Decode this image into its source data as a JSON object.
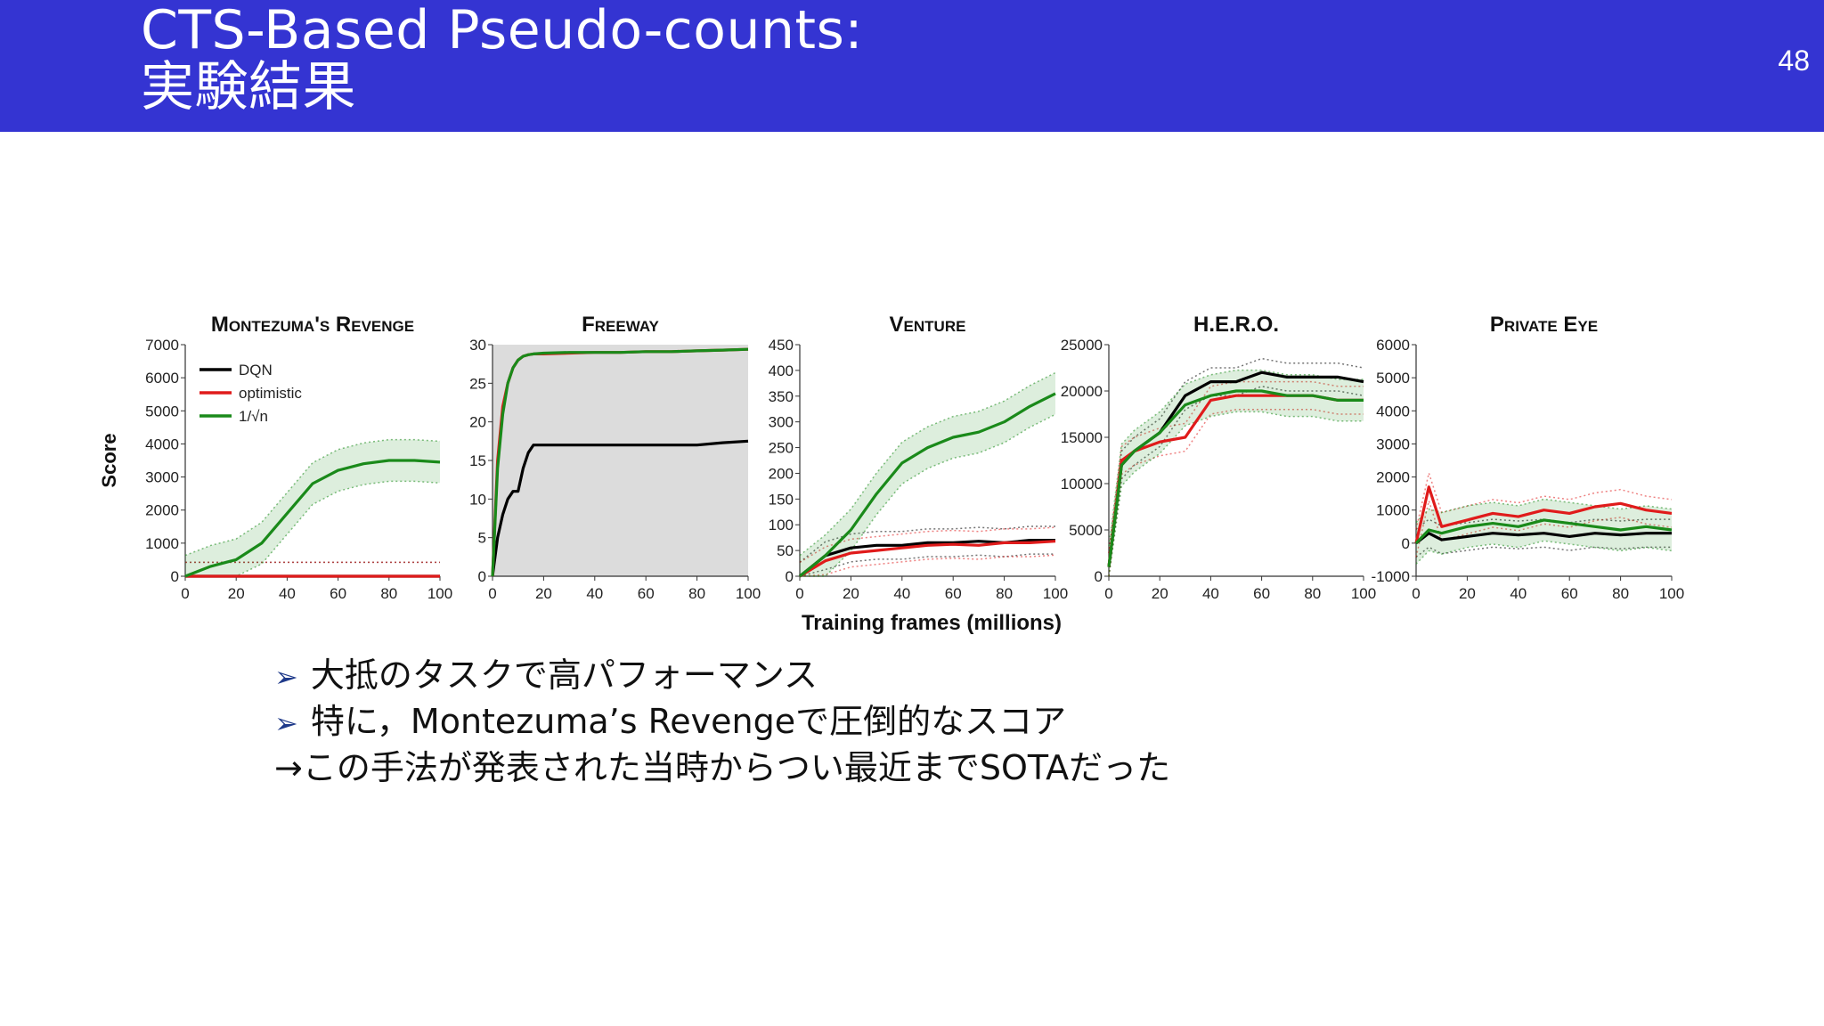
{
  "slide": {
    "title_line1": "CTS-Based Pseudo-counts:",
    "title_line2": "実験結果",
    "page_number": "48",
    "header_color": "#3434d2"
  },
  "bullets": [
    {
      "marker": "➢",
      "text": "大抵のタスクで高パフォーマンス"
    },
    {
      "marker": "➢",
      "text": "特に，Montezuma’s Revengeで圧倒的なスコア"
    },
    {
      "marker": "",
      "text": "→この手法が発表された当時からつい最近までSOTAだった"
    }
  ],
  "figure": {
    "ylabel": "Score",
    "xlabel": "Training frames (millions)",
    "legend": [
      {
        "label": "DQN",
        "color": "#000000"
      },
      {
        "label": "optimistic",
        "color": "#e01b1b"
      },
      {
        "label": "1/√n",
        "color": "#1a8a1a"
      }
    ]
  },
  "chart_data": [
    {
      "type": "line",
      "title": "Montezuma's Revenge",
      "xlabel": "Training frames (millions)",
      "ylabel": "Score",
      "xlim": [
        0,
        100
      ],
      "ylim": [
        0,
        7000
      ],
      "yticks": [
        0,
        1000,
        2000,
        3000,
        4000,
        5000,
        6000,
        7000
      ],
      "xticks": [
        0,
        20,
        40,
        60,
        80,
        100
      ],
      "legend": "top-left",
      "x": [
        0,
        10,
        20,
        30,
        40,
        50,
        60,
        70,
        80,
        90,
        100
      ],
      "series": [
        {
          "name": "DQN",
          "color": "#000000",
          "values": [
            0,
            0,
            0,
            0,
            0,
            0,
            0,
            0,
            0,
            0,
            0
          ]
        },
        {
          "name": "optimistic",
          "color": "#e01b1b",
          "values": [
            0,
            0,
            0,
            0,
            0,
            0,
            0,
            0,
            0,
            0,
            0
          ]
        },
        {
          "name": "1/√n",
          "color": "#1a8a1a",
          "values": [
            0,
            300,
            500,
            1000,
            1900,
            2800,
            3200,
            3400,
            3500,
            3500,
            3450
          ]
        }
      ]
    },
    {
      "type": "line",
      "title": "Freeway",
      "xlim": [
        0,
        100
      ],
      "ylim": [
        0,
        30
      ],
      "yticks": [
        0,
        5,
        10,
        15,
        20,
        25,
        30
      ],
      "xticks": [
        0,
        20,
        40,
        60,
        80,
        100
      ],
      "x": [
        0,
        2,
        4,
        6,
        8,
        10,
        12,
        14,
        16,
        20,
        30,
        40,
        50,
        60,
        70,
        80,
        90,
        100
      ],
      "series": [
        {
          "name": "DQN",
          "color": "#000000",
          "values": [
            0,
            5,
            8,
            10,
            11,
            11,
            14,
            16,
            17,
            17,
            17,
            17,
            17,
            17,
            17,
            17,
            17.3,
            17.5
          ]
        },
        {
          "name": "optimistic",
          "color": "#e01b1b",
          "values": [
            0,
            15,
            22,
            25,
            27,
            28,
            28.5,
            28.7,
            28.8,
            28.8,
            28.9,
            29,
            29,
            29.1,
            29.1,
            29.2,
            29.3,
            29.4
          ]
        },
        {
          "name": "1/√n",
          "color": "#1a8a1a",
          "values": [
            0,
            14,
            21,
            25,
            27,
            28,
            28.5,
            28.7,
            28.8,
            28.9,
            29,
            29,
            29,
            29.1,
            29.1,
            29.2,
            29.3,
            29.4
          ]
        }
      ]
    },
    {
      "type": "line",
      "title": "Venture",
      "xlim": [
        0,
        100
      ],
      "ylim": [
        0,
        450
      ],
      "yticks": [
        0,
        50,
        100,
        150,
        200,
        250,
        300,
        350,
        400,
        450
      ],
      "xticks": [
        0,
        20,
        40,
        60,
        80,
        100
      ],
      "x": [
        0,
        10,
        20,
        30,
        40,
        50,
        60,
        70,
        80,
        90,
        100
      ],
      "series": [
        {
          "name": "DQN",
          "color": "#000000",
          "values": [
            0,
            40,
            55,
            60,
            60,
            65,
            65,
            68,
            65,
            70,
            70
          ]
        },
        {
          "name": "optimistic",
          "color": "#e01b1b",
          "values": [
            0,
            30,
            45,
            50,
            55,
            60,
            62,
            60,
            65,
            65,
            68
          ]
        },
        {
          "name": "1/√n",
          "color": "#1a8a1a",
          "values": [
            0,
            40,
            90,
            160,
            220,
            250,
            270,
            280,
            300,
            330,
            355
          ]
        }
      ]
    },
    {
      "type": "line",
      "title": "H.E.R.O.",
      "xlim": [
        0,
        100
      ],
      "ylim": [
        0,
        25000
      ],
      "yticks": [
        0,
        5000,
        10000,
        15000,
        20000,
        25000
      ],
      "xticks": [
        0,
        20,
        40,
        60,
        80,
        100
      ],
      "x": [
        0,
        5,
        10,
        20,
        30,
        40,
        50,
        60,
        70,
        80,
        90,
        100
      ],
      "series": [
        {
          "name": "DQN",
          "color": "#000000",
          "values": [
            1000,
            12000,
            13500,
            15500,
            19500,
            21000,
            21000,
            22000,
            21500,
            21500,
            21500,
            21000
          ]
        },
        {
          "name": "optimistic",
          "color": "#e01b1b",
          "values": [
            1000,
            12500,
            13500,
            14500,
            15000,
            19000,
            19500,
            19500,
            19500,
            19500,
            19000,
            19000
          ]
        },
        {
          "name": "1/√n",
          "color": "#1a8a1a",
          "values": [
            1000,
            12000,
            13500,
            15500,
            18500,
            19500,
            20000,
            20000,
            19500,
            19500,
            19000,
            19000
          ]
        }
      ]
    },
    {
      "type": "line",
      "title": "Private Eye",
      "xlim": [
        0,
        100
      ],
      "ylim": [
        -1000,
        6000
      ],
      "yticks": [
        -1000,
        0,
        1000,
        2000,
        3000,
        4000,
        5000,
        6000
      ],
      "xticks": [
        0,
        20,
        40,
        60,
        80,
        100
      ],
      "x": [
        0,
        5,
        10,
        20,
        30,
        40,
        50,
        60,
        70,
        80,
        90,
        100
      ],
      "series": [
        {
          "name": "DQN",
          "color": "#000000",
          "values": [
            0,
            300,
            100,
            200,
            300,
            250,
            300,
            200,
            300,
            250,
            300,
            300
          ]
        },
        {
          "name": "optimistic",
          "color": "#e01b1b",
          "values": [
            0,
            1700,
            500,
            700,
            900,
            800,
            1000,
            900,
            1100,
            1200,
            1000,
            900
          ]
        },
        {
          "name": "1/√n",
          "color": "#1a8a1a",
          "values": [
            0,
            400,
            300,
            500,
            600,
            500,
            700,
            600,
            500,
            400,
            500,
            400
          ]
        }
      ]
    }
  ]
}
